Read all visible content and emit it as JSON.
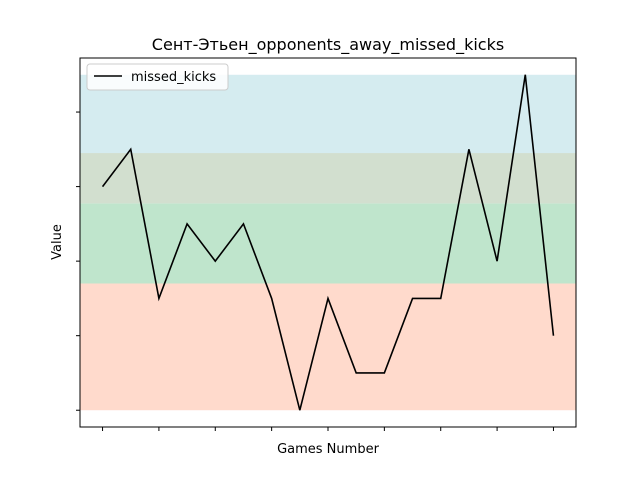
{
  "chart_data": {
    "type": "line",
    "title": "Сент-Этьен_opponents_away_missed_kicks",
    "xlabel": "Games Number",
    "ylabel": "Value",
    "x": [
      1,
      2,
      3,
      4,
      5,
      6,
      7,
      8,
      9,
      10,
      11,
      12,
      13,
      14,
      15,
      16,
      17
    ],
    "series": [
      {
        "name": "missed_kicks",
        "color": "#000000",
        "values": [
          6,
          7,
          3,
          5,
          4,
          5,
          3,
          0,
          3,
          1,
          1,
          3,
          3,
          7,
          4,
          9,
          2
        ]
      }
    ],
    "xlim": [
      0.2,
      17.8
    ],
    "ylim": [
      -0.45,
      9.45
    ],
    "x_ticks": [
      1,
      3,
      5,
      7,
      9,
      11,
      13,
      15,
      17
    ],
    "y_ticks": [
      0,
      2,
      4,
      6,
      8
    ],
    "tick_labels_shown": false,
    "background_bands": [
      {
        "from": 0,
        "to": 3.4,
        "color": "#ffdacc"
      },
      {
        "from": 3.4,
        "to": 5.55,
        "color": "#bfe5cc"
      },
      {
        "from": 5.55,
        "to": 6.9,
        "color": "#d2dfcf"
      },
      {
        "from": 6.9,
        "to": 9.0,
        "color": "#d5ecf0"
      }
    ],
    "grid": false,
    "legend_position": "top-left"
  }
}
